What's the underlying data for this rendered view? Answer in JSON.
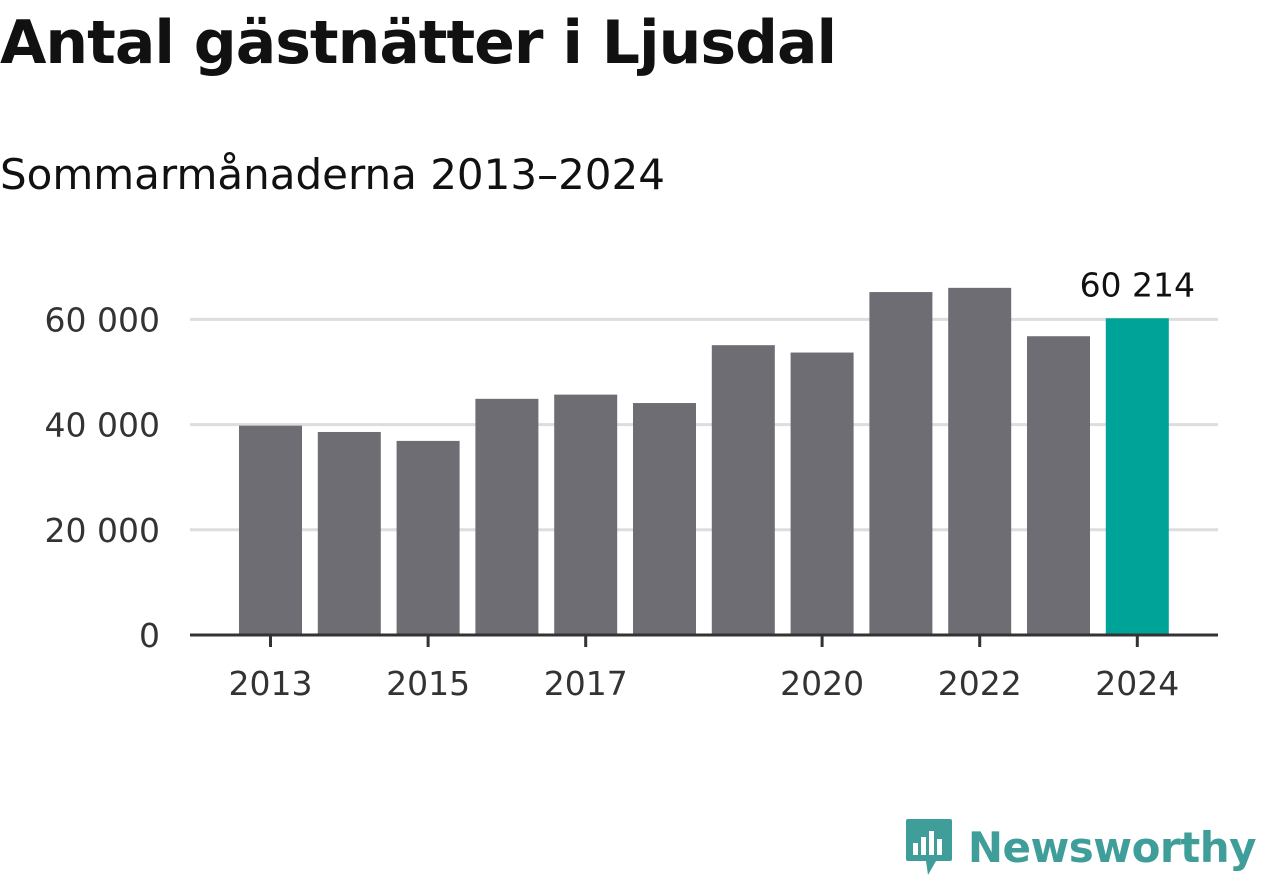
{
  "header": {
    "title": "Antal gästnätter i Ljusdal",
    "subtitle": "Sommarmånaderna 2013–2024"
  },
  "brand": {
    "name": "Newsworthy",
    "icon": "bar-chart-speech-bubble-icon",
    "color": "#3f9e99"
  },
  "chart_data": {
    "type": "bar",
    "title": "Antal gästnätter i Ljusdal",
    "subtitle": "Sommarmånaderna 2013–2024",
    "xlabel": "",
    "ylabel": "",
    "categories": [
      "2013",
      "2014",
      "2015",
      "2016",
      "2017",
      "2018",
      "2019",
      "2020",
      "2021",
      "2022",
      "2023",
      "2024"
    ],
    "values": [
      39800,
      38600,
      36900,
      44900,
      45700,
      44100,
      55100,
      53700,
      65200,
      66000,
      56800,
      60214
    ],
    "ylim": [
      0,
      70000
    ],
    "yticks": [
      0,
      20000,
      40000,
      60000
    ],
    "ytick_labels": [
      "0",
      "20 000",
      "40 000",
      "60 000"
    ],
    "xtick_labels": [
      "2013",
      "2015",
      "2017",
      "2020",
      "2022",
      "2024"
    ],
    "highlight_index": 11,
    "highlight_label": "60 214",
    "bar_color": "#6e6d74",
    "highlight_color": "#00a398",
    "grid_color": "#dddddd",
    "axis_color": "#333333",
    "grid": true,
    "legend": "none"
  }
}
